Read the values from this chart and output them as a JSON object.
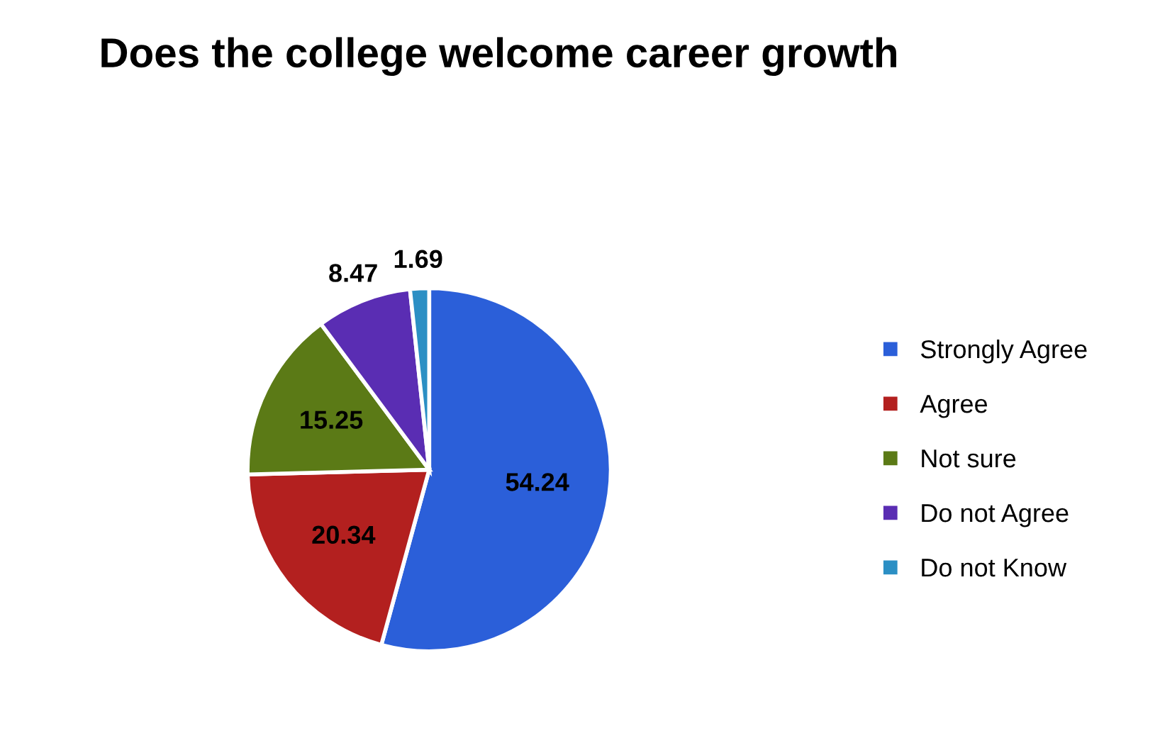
{
  "chart_data": {
    "type": "pie",
    "title": "Does the college welcome career growth",
    "categories": [
      "Strongly Agree",
      "Agree",
      "Not sure",
      "Do not Agree",
      "Do not Know"
    ],
    "values": [
      54.24,
      20.34,
      15.25,
      8.47,
      1.69
    ],
    "colors": [
      "#2b5fd9",
      "#b3201f",
      "#5b7a16",
      "#5a2db3",
      "#2b8fc4"
    ],
    "data_labels": true,
    "legend": "right"
  }
}
